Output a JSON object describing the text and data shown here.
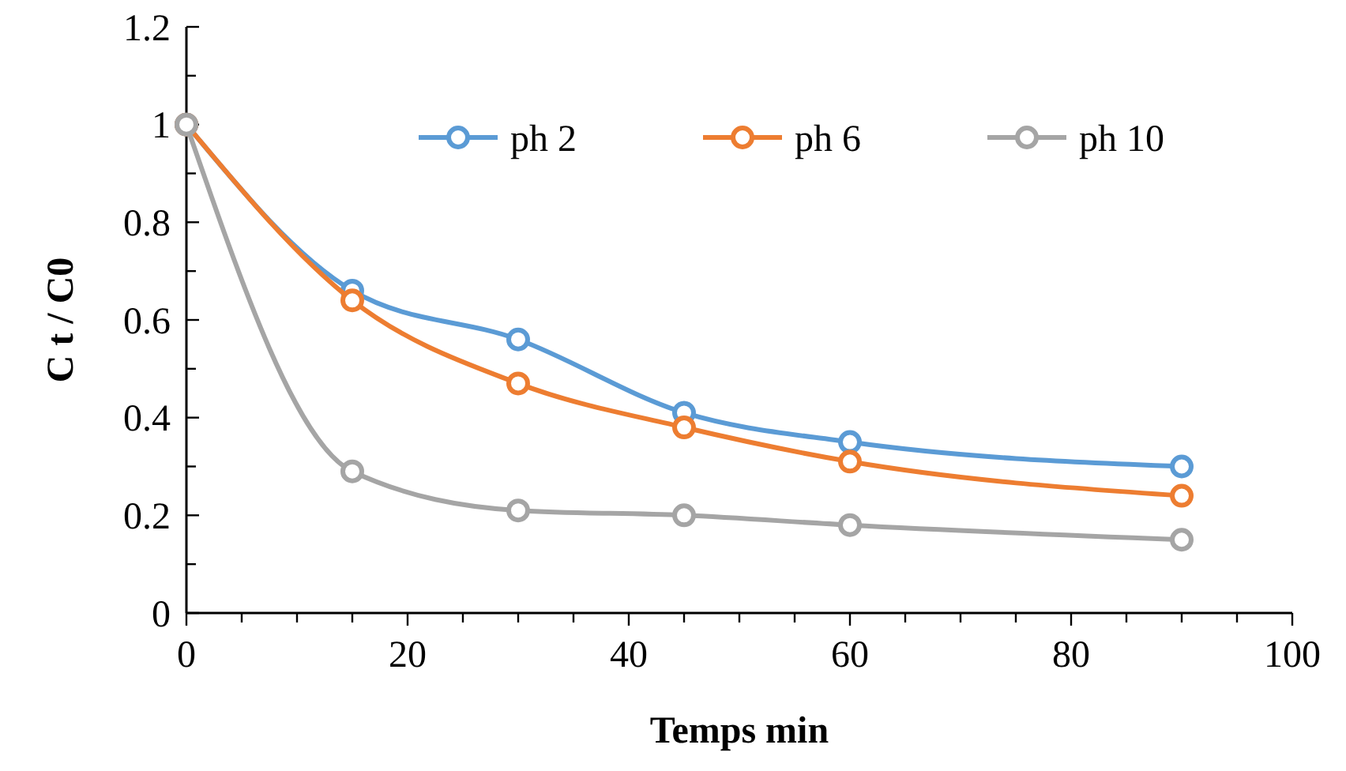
{
  "chart_data": {
    "type": "line",
    "xlabel": "Temps min",
    "ylabel": "C t / C0",
    "x": [
      0,
      15,
      30,
      45,
      60,
      90
    ],
    "series": [
      {
        "name": "ph 2",
        "color": "#5b9bd5",
        "values": [
          1,
          0.66,
          0.56,
          0.41,
          0.35,
          0.3
        ]
      },
      {
        "name": "ph 6",
        "color": "#ed7d31",
        "values": [
          1,
          0.64,
          0.47,
          0.38,
          0.31,
          0.24
        ]
      },
      {
        "name": "ph 10",
        "color": "#a5a5a5",
        "values": [
          1,
          0.29,
          0.21,
          0.2,
          0.18,
          0.15
        ]
      }
    ],
    "xlim": [
      0,
      100
    ],
    "xticks": [
      0,
      {
        "value": 5,
        "label": null
      },
      {
        "value": 10,
        "label": null
      },
      {
        "value": 15,
        "label": null
      },
      20,
      {
        "value": 25,
        "label": null
      },
      {
        "value": 30,
        "label": null
      },
      {
        "value": 35,
        "label": null
      },
      40,
      {
        "value": 45,
        "label": null
      },
      {
        "value": 50,
        "label": null
      },
      {
        "value": 55,
        "label": null
      },
      60,
      {
        "value": 65,
        "label": null
      },
      {
        "value": 70,
        "label": null
      },
      {
        "value": 75,
        "label": null
      },
      80,
      {
        "value": 85,
        "label": null
      },
      {
        "value": 90,
        "label": null
      },
      {
        "value": 95,
        "label": null
      },
      100
    ],
    "ylim": [
      0,
      1.2
    ],
    "yticks": [
      0,
      {
        "value": 0.1,
        "label": null
      },
      0.2,
      {
        "value": 0.3,
        "label": null
      },
      0.4,
      {
        "value": 0.5,
        "label": null
      },
      0.6,
      {
        "value": 0.7,
        "label": null
      },
      0.8,
      {
        "value": 0.9,
        "label": null
      },
      1,
      {
        "value": 1.1,
        "label": null
      },
      1.2
    ],
    "grid": false,
    "legend": "top",
    "marker": "circle",
    "line_style": "solid"
  }
}
